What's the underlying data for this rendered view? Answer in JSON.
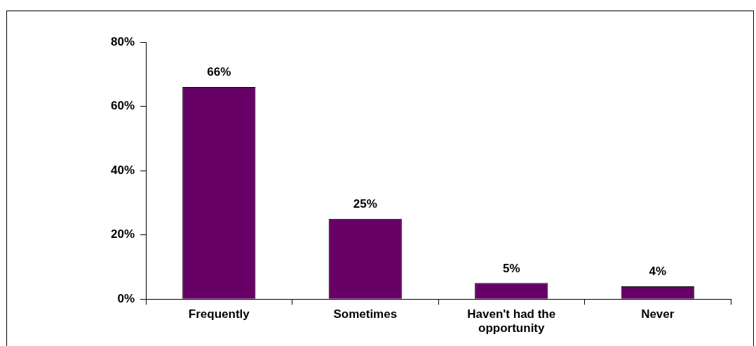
{
  "chart_data": {
    "type": "bar",
    "categories": [
      "Frequently",
      "Sometimes",
      "Haven't had the opportunity",
      "Never"
    ],
    "values": [
      66,
      25,
      5,
      4
    ],
    "color": "#660066",
    "value_labels": [
      "66%",
      "25%",
      "5%",
      "4%"
    ],
    "ylim": [
      0,
      80
    ],
    "yticks": [
      {
        "value": 0,
        "label": "0%"
      },
      {
        "value": 20,
        "label": "20%"
      },
      {
        "value": 40,
        "label": "40%"
      },
      {
        "value": 60,
        "label": "60%"
      },
      {
        "value": 80,
        "label": "80%"
      }
    ],
    "grid": false,
    "legend": false
  }
}
